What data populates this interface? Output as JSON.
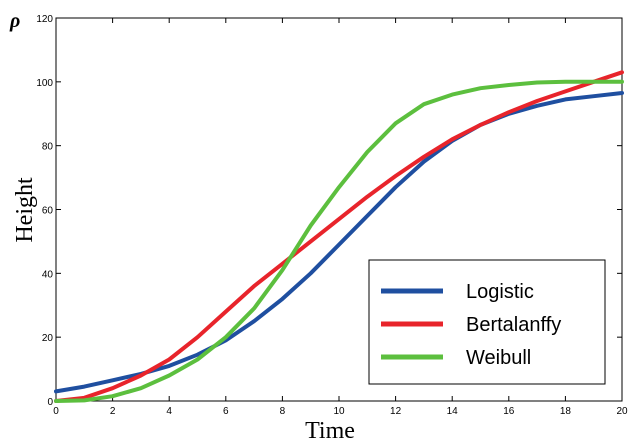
{
  "corner_label": "ρ",
  "chart_data": {
    "type": "line",
    "title": "",
    "xlabel": "Time",
    "ylabel": "Height",
    "xlim": [
      0,
      20
    ],
    "ylim": [
      0,
      120
    ],
    "xticks": [
      0,
      2,
      4,
      6,
      8,
      10,
      12,
      14,
      16,
      18,
      20
    ],
    "yticks": [
      0,
      20,
      40,
      60,
      80,
      100,
      120
    ],
    "xtick_labels": [
      "0",
      "2",
      "4",
      "6",
      "8",
      "10",
      "12",
      "14",
      "16",
      "18",
      "20"
    ],
    "ytick_labels": [
      "0",
      "20",
      "40",
      "60",
      "80",
      "100",
      "120"
    ],
    "grid": false,
    "legend_position": "lower-right",
    "series": [
      {
        "name": "Logistic",
        "color": "#1f4fa0",
        "x": [
          0,
          1,
          2,
          3,
          4,
          5,
          6,
          7,
          8,
          9,
          10,
          11,
          12,
          13,
          14,
          15,
          16,
          17,
          18,
          19,
          20
        ],
        "y": [
          3,
          4.5,
          6.5,
          8.5,
          11,
          14.5,
          19,
          25,
          32,
          40,
          49,
          58,
          67,
          75,
          81.5,
          86.5,
          90,
          92.5,
          94.5,
          95.5,
          96.5
        ]
      },
      {
        "name": "Bertalanffy",
        "color": "#e8242b",
        "x": [
          0,
          1,
          2,
          3,
          4,
          5,
          6,
          7,
          8,
          9,
          10,
          11,
          12,
          13,
          14,
          15,
          16,
          17,
          18,
          19,
          20
        ],
        "y": [
          0,
          1,
          4,
          8,
          13,
          20,
          28,
          36,
          43,
          50,
          57,
          64,
          70.5,
          76.5,
          82,
          86.5,
          90.5,
          94,
          97,
          100,
          103
        ]
      },
      {
        "name": "Weibull",
        "color": "#5cbf3e",
        "x": [
          0,
          1,
          2,
          3,
          4,
          5,
          6,
          7,
          8,
          9,
          10,
          11,
          12,
          13,
          14,
          15,
          16,
          17,
          18,
          19,
          20
        ],
        "y": [
          0,
          0.2,
          1.5,
          4,
          8,
          13,
          20,
          29,
          41,
          55,
          67,
          78,
          87,
          93,
          96,
          98,
          99,
          99.8,
          100,
          100,
          100
        ]
      }
    ]
  }
}
